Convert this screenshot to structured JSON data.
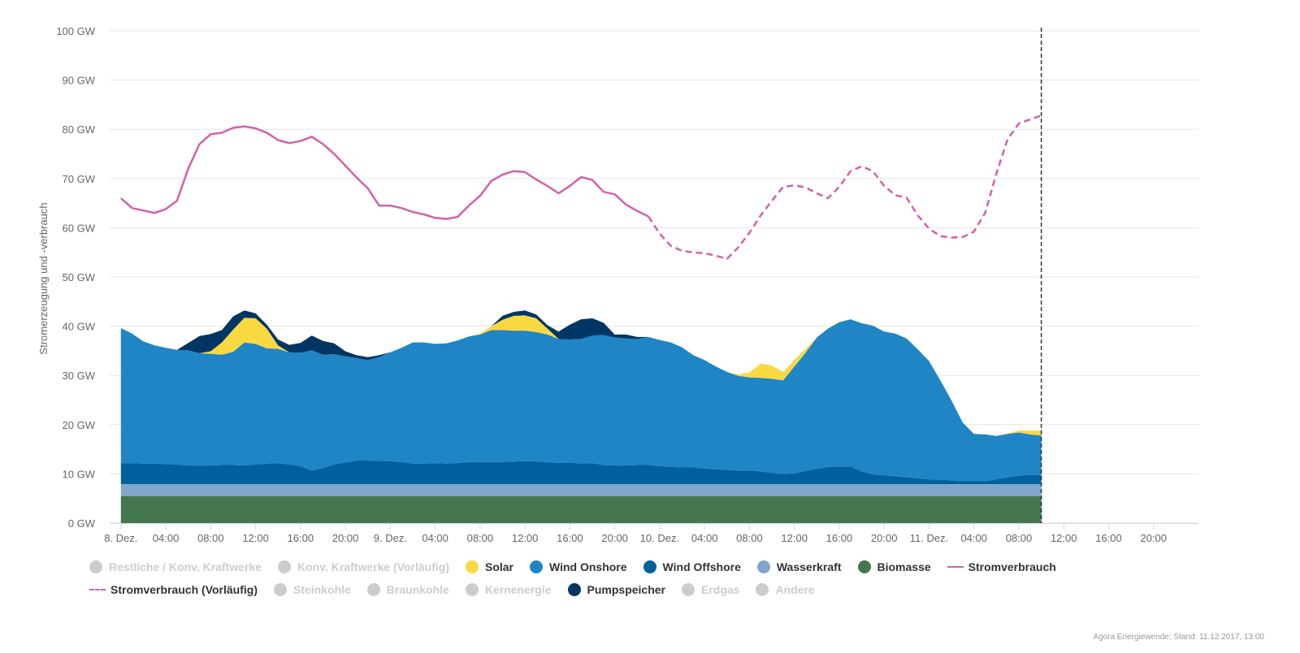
{
  "chart_data": {
    "type": "area",
    "ylabel": "Stromerzeugung und -verbrauch",
    "ylim": [
      0,
      100
    ],
    "y_unit": "GW",
    "y_ticks": [
      0,
      10,
      20,
      30,
      40,
      50,
      60,
      70,
      80,
      90,
      100
    ],
    "y_tick_labels": [
      "0 GW",
      "10 GW",
      "20 GW",
      "30 GW",
      "40 GW",
      "50 GW",
      "60 GW",
      "70 GW",
      "80 GW",
      "90 GW",
      "100 GW"
    ],
    "x_range_hours": [
      -1,
      96
    ],
    "x_ticks": [
      {
        "h": 0,
        "label": "8. Dez."
      },
      {
        "h": 4,
        "label": "04:00"
      },
      {
        "h": 8,
        "label": "08:00"
      },
      {
        "h": 12,
        "label": "12:00"
      },
      {
        "h": 16,
        "label": "16:00"
      },
      {
        "h": 20,
        "label": "20:00"
      },
      {
        "h": 24,
        "label": "9. Dez."
      },
      {
        "h": 28,
        "label": "04:00"
      },
      {
        "h": 32,
        "label": "08:00"
      },
      {
        "h": 36,
        "label": "12:00"
      },
      {
        "h": 40,
        "label": "16:00"
      },
      {
        "h": 44,
        "label": "20:00"
      },
      {
        "h": 48,
        "label": "10. Dez."
      },
      {
        "h": 52,
        "label": "04:00"
      },
      {
        "h": 56,
        "label": "08:00"
      },
      {
        "h": 60,
        "label": "12:00"
      },
      {
        "h": 64,
        "label": "16:00"
      },
      {
        "h": 68,
        "label": "20:00"
      },
      {
        "h": 72,
        "label": "11. Dez."
      },
      {
        "h": 76,
        "label": "04:00"
      },
      {
        "h": 80,
        "label": "08:00"
      },
      {
        "h": 84,
        "label": "12:00"
      },
      {
        "h": 88,
        "label": "16:00"
      },
      {
        "h": 92,
        "label": "20:00"
      }
    ],
    "now_hour": 82,
    "x_hours": [
      0,
      1,
      2,
      3,
      4,
      5,
      6,
      7,
      8,
      9,
      10,
      11,
      12,
      13,
      14,
      15,
      16,
      17,
      18,
      19,
      20,
      21,
      22,
      23,
      24,
      25,
      26,
      27,
      28,
      29,
      30,
      31,
      32,
      33,
      34,
      35,
      36,
      37,
      38,
      39,
      40,
      41,
      42,
      43,
      44,
      45,
      46,
      47,
      48,
      49,
      50,
      51,
      52,
      53,
      54,
      55,
      56,
      57,
      58,
      59,
      60,
      61,
      62,
      63,
      64,
      65,
      66,
      67,
      68,
      69,
      70,
      71,
      72,
      73,
      74,
      75,
      76,
      77,
      78,
      79,
      80,
      81,
      82
    ],
    "stack_order": [
      "Biomasse",
      "Wasserkraft",
      "Wind Offshore",
      "Wind Onshore",
      "Solar",
      "Pumpspeicher"
    ],
    "series": [
      {
        "name": "Biomasse",
        "color": "#44774e",
        "values": [
          5.5,
          5.5,
          5.5,
          5.5,
          5.5,
          5.5,
          5.5,
          5.5,
          5.5,
          5.5,
          5.5,
          5.5,
          5.5,
          5.5,
          5.5,
          5.5,
          5.5,
          5.5,
          5.5,
          5.5,
          5.5,
          5.5,
          5.5,
          5.5,
          5.5,
          5.5,
          5.5,
          5.5,
          5.5,
          5.5,
          5.5,
          5.5,
          5.5,
          5.5,
          5.5,
          5.5,
          5.5,
          5.5,
          5.5,
          5.5,
          5.5,
          5.5,
          5.5,
          5.5,
          5.5,
          5.5,
          5.5,
          5.5,
          5.5,
          5.5,
          5.5,
          5.5,
          5.5,
          5.5,
          5.5,
          5.5,
          5.5,
          5.5,
          5.5,
          5.5,
          5.5,
          5.5,
          5.5,
          5.5,
          5.5,
          5.5,
          5.5,
          5.5,
          5.5,
          5.5,
          5.5,
          5.5,
          5.5,
          5.5,
          5.5,
          5.5,
          5.5,
          5.5,
          5.5,
          5.5,
          5.5,
          5.5,
          5.5
        ]
      },
      {
        "name": "Wasserkraft",
        "color": "#7fa7cb",
        "values": [
          2.4,
          2.4,
          2.4,
          2.4,
          2.4,
          2.4,
          2.4,
          2.4,
          2.4,
          2.4,
          2.4,
          2.4,
          2.4,
          2.4,
          2.4,
          2.4,
          2.4,
          2.4,
          2.4,
          2.4,
          2.4,
          2.4,
          2.4,
          2.4,
          2.4,
          2.4,
          2.4,
          2.4,
          2.4,
          2.4,
          2.4,
          2.4,
          2.4,
          2.4,
          2.4,
          2.4,
          2.4,
          2.4,
          2.4,
          2.4,
          2.4,
          2.4,
          2.4,
          2.4,
          2.4,
          2.4,
          2.4,
          2.4,
          2.4,
          2.4,
          2.4,
          2.4,
          2.4,
          2.4,
          2.4,
          2.4,
          2.4,
          2.4,
          2.4,
          2.4,
          2.4,
          2.4,
          2.4,
          2.4,
          2.4,
          2.4,
          2.4,
          2.4,
          2.4,
          2.4,
          2.4,
          2.4,
          2.4,
          2.4,
          2.4,
          2.4,
          2.4,
          2.4,
          2.4,
          2.4,
          2.4,
          2.4,
          2.4
        ]
      },
      {
        "name": "Wind Offshore",
        "color": "#00609d",
        "values": [
          4.3,
          4.3,
          4.2,
          4.2,
          4.1,
          4.0,
          3.8,
          3.8,
          3.8,
          3.9,
          3.9,
          3.8,
          4.0,
          4.2,
          4.3,
          4.0,
          3.7,
          2.8,
          3.3,
          4.0,
          4.4,
          4.8,
          4.8,
          4.7,
          4.7,
          4.5,
          4.2,
          4.2,
          4.3,
          4.2,
          4.3,
          4.5,
          4.5,
          4.5,
          4.5,
          4.6,
          4.7,
          4.6,
          4.5,
          4.3,
          4.4,
          4.2,
          4.3,
          3.9,
          3.8,
          3.8,
          3.9,
          3.9,
          3.7,
          3.5,
          3.4,
          3.4,
          3.2,
          3.0,
          2.9,
          2.8,
          2.8,
          2.6,
          2.3,
          2.1,
          2.2,
          2.7,
          3.1,
          3.5,
          3.6,
          3.6,
          2.6,
          2.0,
          1.8,
          1.6,
          1.4,
          1.2,
          1.0,
          0.9,
          0.8,
          0.6,
          0.6,
          0.6,
          1.0,
          1.4,
          1.7,
          1.9,
          1.9
        ]
      },
      {
        "name": "Wind Onshore",
        "color": "#1f85c5",
        "values": [
          27.4,
          26.3,
          24.8,
          24.0,
          23.6,
          23.3,
          23.4,
          22.8,
          22.7,
          22.4,
          23.0,
          25.0,
          24.5,
          23.4,
          23.2,
          22.8,
          23.0,
          24.4,
          23.0,
          22.4,
          21.6,
          20.8,
          20.4,
          21.1,
          22.1,
          23.2,
          24.6,
          24.6,
          24.2,
          24.4,
          24.9,
          25.5,
          25.9,
          26.8,
          26.8,
          26.6,
          26.5,
          26.3,
          25.9,
          25.2,
          25.0,
          25.3,
          25.9,
          26.4,
          26.0,
          25.8,
          25.6,
          26.0,
          25.6,
          25.3,
          24.4,
          22.8,
          22.0,
          20.9,
          19.9,
          19.2,
          18.9,
          19.0,
          19.1,
          19.0,
          21.7,
          24.0,
          26.7,
          28.1,
          29.3,
          29.9,
          30.1,
          30.2,
          29.2,
          29.0,
          28.2,
          26.2,
          24.0,
          20.2,
          16.2,
          11.9,
          9.6,
          9.5,
          8.8,
          8.8,
          8.8,
          8.2,
          8.0
        ]
      },
      {
        "name": "Solar",
        "color": "#f8d941",
        "values": [
          0,
          0,
          0,
          0,
          0,
          0,
          0,
          0,
          0.5,
          2.5,
          4.5,
          5.0,
          5.2,
          4.0,
          0.7,
          0,
          0,
          0,
          0,
          0,
          0,
          0,
          0,
          0,
          0,
          0,
          0,
          0,
          0,
          0,
          0,
          0,
          0.2,
          0.8,
          2.1,
          3.0,
          3.1,
          2.8,
          1.2,
          0,
          0,
          0,
          0,
          0,
          0,
          0,
          0,
          0,
          0,
          0,
          0,
          0,
          0,
          0,
          0,
          0.3,
          1.0,
          2.9,
          2.7,
          1.7,
          1.3,
          0.8,
          0,
          0,
          0,
          0,
          0,
          0,
          0,
          0,
          0,
          0,
          0,
          0,
          0,
          0,
          0,
          0,
          0,
          0.1,
          0.4,
          0.8,
          1.0
        ]
      },
      {
        "name": "Pumpspeicher",
        "color": "#003564",
        "values": [
          0,
          0,
          0,
          0,
          0,
          0,
          1.5,
          3.5,
          3.5,
          2.5,
          2.7,
          1.5,
          1.0,
          0.8,
          1.2,
          1.5,
          2.0,
          3.0,
          2.8,
          2.2,
          1.0,
          0.6,
          0.6,
          0.4,
          0,
          0,
          0,
          0,
          0,
          0,
          0,
          0,
          0,
          0,
          0.8,
          0.8,
          1.0,
          0.8,
          0.7,
          1.5,
          3.0,
          4.0,
          3.5,
          2.5,
          0.6,
          0.8,
          0.4,
          0,
          0,
          0,
          0,
          0,
          0,
          0,
          0,
          0,
          0,
          0,
          0,
          0,
          0,
          0,
          0,
          0,
          0,
          0,
          0,
          0,
          0,
          0,
          0,
          0,
          0,
          0,
          0,
          0,
          0,
          0,
          0,
          0,
          0,
          0,
          0
        ]
      },
      {
        "name": "Stromverbrauch",
        "color": "#d162a9",
        "style": "solid",
        "start_hour": 0,
        "values": [
          66,
          64,
          63.5,
          63,
          63.8,
          65.5,
          72,
          77,
          79,
          79.3,
          80.3,
          80.6,
          80.2,
          79.3,
          77.8,
          77.2,
          77.6,
          78.5,
          77,
          75,
          72.6,
          70.2,
          68,
          64.5,
          64.5,
          64,
          63.2,
          62.7,
          62,
          61.8,
          62.2,
          64.5,
          66.5,
          69.5,
          70.8,
          71.5,
          71.3,
          69.8,
          68.5,
          67,
          68.5,
          70.3,
          69.7,
          67.3,
          66.8,
          64.7,
          63.4,
          62.3
        ]
      },
      {
        "name": "Stromverbrauch (Vorläufig)",
        "color": "#d162a9",
        "style": "dashed",
        "start_hour": 47,
        "values": [
          62.3,
          58.8,
          56.3,
          55.3,
          55,
          54.8,
          54.3,
          53.7,
          56,
          59,
          62.5,
          65.5,
          68.3,
          68.6,
          68.2,
          67,
          66,
          68.3,
          71.5,
          72.5,
          71.5,
          68.5,
          66.6,
          66.1,
          62.5,
          59.8,
          58.3,
          58,
          58.1,
          59.2,
          63,
          71,
          78,
          81.2,
          82,
          82.8
        ]
      }
    ],
    "legend": [
      {
        "label": "Restliche / Konv. Kraftwerke",
        "symbol": "dot",
        "color": "#cccccc",
        "enabled": false
      },
      {
        "label": "Konv. Kraftwerke (Vorläufig)",
        "symbol": "dot",
        "color": "#cccccc",
        "enabled": false
      },
      {
        "label": "Solar",
        "symbol": "dot",
        "color": "#f8d941",
        "enabled": true
      },
      {
        "label": "Wind Onshore",
        "symbol": "dot",
        "color": "#1f85c5",
        "enabled": true
      },
      {
        "label": "Wind Offshore",
        "symbol": "dot",
        "color": "#00609d",
        "enabled": true
      },
      {
        "label": "Wasserkraft",
        "symbol": "dot",
        "color": "#7fa7cb",
        "enabled": true
      },
      {
        "label": "Biomasse",
        "symbol": "dot",
        "color": "#44774e",
        "enabled": true
      },
      {
        "label": "Stromverbrauch",
        "symbol": "line",
        "color": "#d162a9",
        "enabled": true
      },
      {
        "label": "Stromverbrauch (Vorläufig)",
        "symbol": "dash",
        "color": "#d162a9",
        "enabled": true
      },
      {
        "label": "Steinkohle",
        "symbol": "dot",
        "color": "#cccccc",
        "enabled": false
      },
      {
        "label": "Braunkohle",
        "symbol": "dot",
        "color": "#cccccc",
        "enabled": false
      },
      {
        "label": "Kernenergie",
        "symbol": "dot",
        "color": "#cccccc",
        "enabled": false
      },
      {
        "label": "Pumpspeicher",
        "symbol": "dot",
        "color": "#003564",
        "enabled": true
      },
      {
        "label": "Erdgas",
        "symbol": "dot",
        "color": "#cccccc",
        "enabled": false
      },
      {
        "label": "Andere",
        "symbol": "dot",
        "color": "#cccccc",
        "enabled": false
      }
    ],
    "credits": "Agora Energiewende; Stand: 11.12.2017, 13:00"
  }
}
